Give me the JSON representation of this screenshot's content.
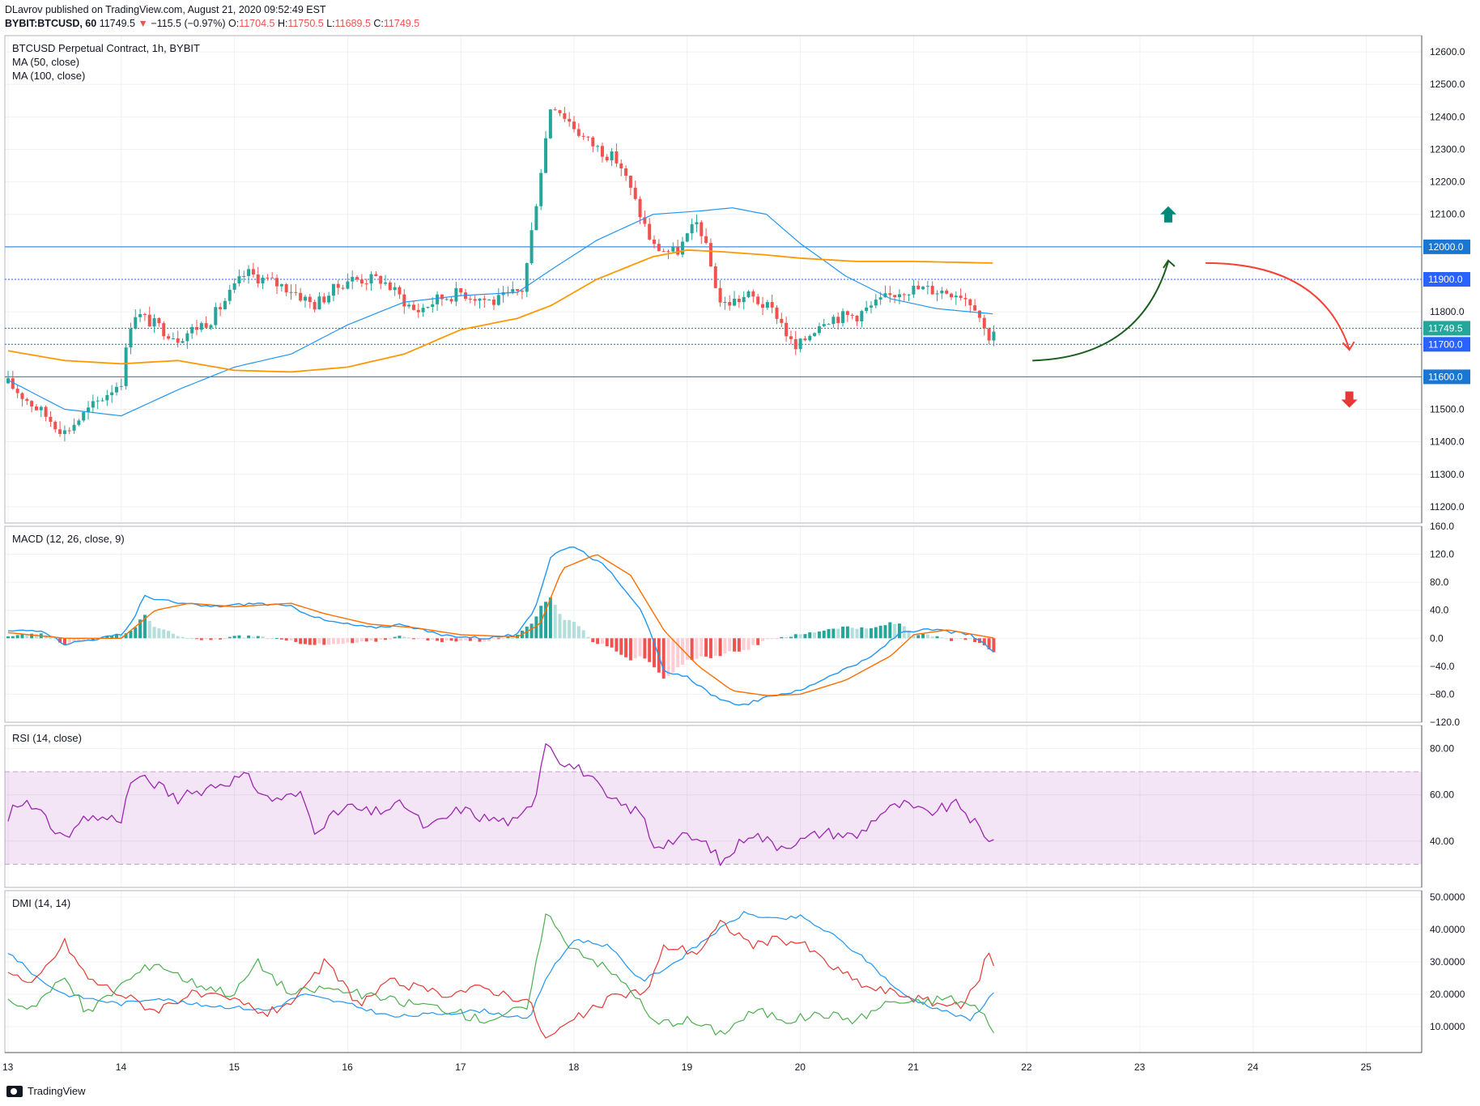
{
  "header": {
    "line1": "DLavrov published on TradingView.com, August 21, 2020 09:52:49 EST",
    "symbol": "BYBIT:BTCUSD, 60",
    "last": "11749.5",
    "change": "−115.5 (−0.97%)",
    "o_label": "O:",
    "o_value": "11704.5",
    "h_label": "H:",
    "h_value": "11750.5",
    "l_label": "L:",
    "l_value": "11689.5",
    "c_label": "C:",
    "c_value": "11749.5"
  },
  "footer": {
    "brand": "TradingView"
  },
  "colors": {
    "up": "#26a69a",
    "down": "#ef5350",
    "ma50": "#2196f3",
    "ma100": "#ff9800",
    "signal": "#ff6d00",
    "rsi": "#9c27b0",
    "dmi_plus": "#2196f3",
    "dmi_minus": "#e53935",
    "adx": "#4caf50",
    "arrow_green": "#1b5e20",
    "arrow_red": "#f44336",
    "level_line": "#2962ff"
  },
  "chart_data": [
    {
      "type": "candlestick",
      "title": "BTCUSD Perpetual Contract, 1h, BYBIT",
      "legend": [
        "MA (50, close)",
        "MA (100, close)"
      ],
      "x_ticks": [
        "13",
        "14",
        "15",
        "16",
        "17",
        "18",
        "19",
        "20",
        "21",
        "22",
        "23",
        "24",
        "25"
      ],
      "ylim": [
        11150,
        12650
      ],
      "y_ticks": [
        "11200.0",
        "11300.0",
        "11400.0",
        "11500.0",
        "11600.0",
        "11700.0",
        "11800.0",
        "11900.0",
        "12000.0",
        "12100.0",
        "12200.0",
        "12300.0",
        "12400.0",
        "12500.0",
        "12600.0"
      ],
      "price_key_points": [
        [
          13.0,
          11580
        ],
        [
          13.5,
          11430
        ],
        [
          14.0,
          11590
        ],
        [
          14.1,
          11800
        ],
        [
          14.5,
          11720
        ],
        [
          14.8,
          11780
        ],
        [
          15.1,
          11920
        ],
        [
          15.5,
          11870
        ],
        [
          15.7,
          11820
        ],
        [
          16.0,
          11900
        ],
        [
          16.3,
          11900
        ],
        [
          16.6,
          11800
        ],
        [
          16.8,
          11840
        ],
        [
          17.0,
          11860
        ],
        [
          17.3,
          11830
        ],
        [
          17.55,
          11870
        ],
        [
          17.7,
          12220
        ],
        [
          17.8,
          12450
        ],
        [
          18.1,
          12330
        ],
        [
          18.4,
          12260
        ],
        [
          18.7,
          12000
        ],
        [
          18.9,
          11980
        ],
        [
          19.1,
          12080
        ],
        [
          19.3,
          11820
        ],
        [
          19.55,
          11850
        ],
        [
          19.8,
          11790
        ],
        [
          19.95,
          11680
        ],
        [
          20.2,
          11780
        ],
        [
          20.5,
          11790
        ],
        [
          20.7,
          11830
        ],
        [
          20.9,
          11870
        ],
        [
          21.1,
          11870
        ],
        [
          21.4,
          11860
        ],
        [
          21.55,
          11820
        ],
        [
          21.65,
          11720
        ],
        [
          21.72,
          11749.5
        ]
      ],
      "ma50_points": [
        [
          13.0,
          11590
        ],
        [
          13.5,
          11500
        ],
        [
          14.0,
          11480
        ],
        [
          14.5,
          11560
        ],
        [
          15.0,
          11630
        ],
        [
          15.5,
          11670
        ],
        [
          16.0,
          11760
        ],
        [
          16.5,
          11830
        ],
        [
          17.0,
          11850
        ],
        [
          17.5,
          11860
        ],
        [
          17.8,
          11930
        ],
        [
          18.2,
          12020
        ],
        [
          18.7,
          12100
        ],
        [
          19.1,
          12110
        ],
        [
          19.4,
          12120
        ],
        [
          19.7,
          12100
        ],
        [
          20.0,
          12010
        ],
        [
          20.4,
          11910
        ],
        [
          20.8,
          11840
        ],
        [
          21.2,
          11810
        ],
        [
          21.5,
          11800
        ],
        [
          21.72,
          11793
        ]
      ],
      "ma100_points": [
        [
          13.0,
          11680
        ],
        [
          13.5,
          11650
        ],
        [
          14.0,
          11640
        ],
        [
          14.5,
          11650
        ],
        [
          15.0,
          11620
        ],
        [
          15.5,
          11615
        ],
        [
          16.0,
          11630
        ],
        [
          16.5,
          11670
        ],
        [
          17.0,
          11745
        ],
        [
          17.5,
          11780
        ],
        [
          17.8,
          11820
        ],
        [
          18.2,
          11900
        ],
        [
          18.7,
          11970
        ],
        [
          19.0,
          11990
        ],
        [
          19.3,
          11985
        ],
        [
          19.7,
          11975
        ],
        [
          20.0,
          11965
        ],
        [
          20.5,
          11955
        ],
        [
          21.0,
          11955
        ],
        [
          21.72,
          11950
        ]
      ],
      "levels": [
        12000.0,
        11900.0,
        11749.5,
        11700.0,
        11600.0
      ],
      "badges": [
        "12000.0",
        "11900.0",
        "11749.5",
        "11700.0",
        "11600.0"
      ],
      "annotations": [
        "up-arrow",
        "down-arrow",
        "green-curve-up",
        "red-curve-down"
      ]
    },
    {
      "type": "line",
      "title": "MACD (12, 26, close, 9)",
      "ylim": [
        -120,
        160
      ],
      "y_ticks": [
        "160.0",
        "120.0",
        "80.0",
        "40.0",
        "0.0",
        "−40.0",
        "−80.0",
        "−120.0"
      ],
      "macd_points": [
        [
          13.0,
          10
        ],
        [
          13.3,
          12
        ],
        [
          13.5,
          -8
        ],
        [
          14.0,
          5
        ],
        [
          14.1,
          25
        ],
        [
          14.2,
          60
        ],
        [
          14.5,
          50
        ],
        [
          14.8,
          45
        ],
        [
          15.2,
          50
        ],
        [
          15.5,
          45
        ],
        [
          15.8,
          25
        ],
        [
          16.2,
          15
        ],
        [
          16.5,
          20
        ],
        [
          16.8,
          5
        ],
        [
          17.2,
          0
        ],
        [
          17.5,
          5
        ],
        [
          17.65,
          40
        ],
        [
          17.8,
          120
        ],
        [
          18.0,
          132
        ],
        [
          18.3,
          100
        ],
        [
          18.6,
          40
        ],
        [
          18.8,
          -50
        ],
        [
          19.0,
          -55
        ],
        [
          19.3,
          -90
        ],
        [
          19.5,
          -95
        ],
        [
          19.8,
          -80
        ],
        [
          20.0,
          -75
        ],
        [
          20.3,
          -50
        ],
        [
          20.6,
          -30
        ],
        [
          20.9,
          10
        ],
        [
          21.2,
          12
        ],
        [
          21.5,
          5
        ],
        [
          21.72,
          -20
        ]
      ],
      "signal_points": [
        [
          13.0,
          8
        ],
        [
          13.5,
          0
        ],
        [
          14.0,
          0
        ],
        [
          14.3,
          40
        ],
        [
          14.6,
          50
        ],
        [
          15.0,
          45
        ],
        [
          15.5,
          50
        ],
        [
          15.8,
          35
        ],
        [
          16.2,
          20
        ],
        [
          16.6,
          15
        ],
        [
          17.0,
          5
        ],
        [
          17.5,
          2
        ],
        [
          17.7,
          20
        ],
        [
          17.9,
          100
        ],
        [
          18.2,
          120
        ],
        [
          18.5,
          90
        ],
        [
          18.8,
          10
        ],
        [
          19.1,
          -40
        ],
        [
          19.4,
          -75
        ],
        [
          19.7,
          -82
        ],
        [
          20.0,
          -80
        ],
        [
          20.4,
          -60
        ],
        [
          20.8,
          -25
        ],
        [
          21.0,
          5
        ],
        [
          21.3,
          12
        ],
        [
          21.72,
          0
        ]
      ],
      "hist_sign_changes": [
        [
          13.0,
          1
        ],
        [
          13.45,
          -1
        ],
        [
          14.0,
          1
        ],
        [
          14.5,
          -1
        ],
        [
          15.1,
          1
        ],
        [
          15.6,
          -1
        ],
        [
          16.2,
          1
        ],
        [
          17.5,
          1
        ],
        [
          18.2,
          -1
        ],
        [
          19.6,
          1
        ],
        [
          21.5,
          -1
        ]
      ]
    },
    {
      "type": "line",
      "title": "RSI (14, close)",
      "ylim": [
        20,
        90
      ],
      "y_ticks": [
        "80.00",
        "60.00",
        "40.00"
      ],
      "band": [
        30,
        70
      ],
      "rsi_points": [
        [
          13.0,
          50
        ],
        [
          13.1,
          58
        ],
        [
          13.3,
          52
        ],
        [
          13.5,
          40
        ],
        [
          13.7,
          50
        ],
        [
          14.0,
          50
        ],
        [
          14.1,
          68
        ],
        [
          14.3,
          65
        ],
        [
          14.5,
          58
        ],
        [
          14.8,
          64
        ],
        [
          15.1,
          68
        ],
        [
          15.3,
          58
        ],
        [
          15.6,
          60
        ],
        [
          15.7,
          45
        ],
        [
          16.0,
          55
        ],
        [
          16.2,
          52
        ],
        [
          16.5,
          56
        ],
        [
          16.7,
          45
        ],
        [
          17.0,
          54
        ],
        [
          17.2,
          50
        ],
        [
          17.5,
          48
        ],
        [
          17.65,
          58
        ],
        [
          17.75,
          84
        ],
        [
          17.9,
          74
        ],
        [
          18.1,
          70
        ],
        [
          18.3,
          58
        ],
        [
          18.6,
          52
        ],
        [
          18.7,
          38
        ],
        [
          19.0,
          42
        ],
        [
          19.2,
          38
        ],
        [
          19.3,
          30
        ],
        [
          19.55,
          44
        ],
        [
          19.8,
          38
        ],
        [
          20.0,
          40
        ],
        [
          20.2,
          44
        ],
        [
          20.5,
          42
        ],
        [
          20.7,
          52
        ],
        [
          20.9,
          56
        ],
        [
          21.1,
          52
        ],
        [
          21.4,
          56
        ],
        [
          21.6,
          44
        ],
        [
          21.65,
          38
        ],
        [
          21.72,
          43
        ]
      ]
    },
    {
      "type": "line",
      "title": "DMI (14, 14)",
      "ylim": [
        2,
        52
      ],
      "y_ticks": [
        "50.0000",
        "40.0000",
        "30.0000",
        "20.0000",
        "10.0000"
      ],
      "plus_points": [
        [
          13.0,
          33
        ],
        [
          13.3,
          24
        ],
        [
          13.5,
          20
        ],
        [
          14.0,
          17
        ],
        [
          14.3,
          19
        ],
        [
          14.6,
          17
        ],
        [
          15.0,
          16
        ],
        [
          15.3,
          15
        ],
        [
          15.6,
          20
        ],
        [
          16.0,
          17
        ],
        [
          16.4,
          13
        ],
        [
          16.8,
          14
        ],
        [
          17.2,
          15
        ],
        [
          17.6,
          12
        ],
        [
          17.75,
          25
        ],
        [
          18.0,
          37
        ],
        [
          18.3,
          35
        ],
        [
          18.6,
          24
        ],
        [
          18.9,
          30
        ],
        [
          19.2,
          38
        ],
        [
          19.5,
          45
        ],
        [
          19.8,
          43
        ],
        [
          20.0,
          44
        ],
        [
          20.3,
          38
        ],
        [
          20.6,
          30
        ],
        [
          20.9,
          20
        ],
        [
          21.1,
          17
        ],
        [
          21.5,
          12
        ],
        [
          21.72,
          21
        ]
      ],
      "minus_points": [
        [
          13.0,
          28
        ],
        [
          13.2,
          22
        ],
        [
          13.5,
          36
        ],
        [
          13.7,
          25
        ],
        [
          14.0,
          20
        ],
        [
          14.3,
          15
        ],
        [
          14.6,
          20
        ],
        [
          15.0,
          18
        ],
        [
          15.3,
          14
        ],
        [
          15.6,
          20
        ],
        [
          15.8,
          30
        ],
        [
          16.1,
          17
        ],
        [
          16.4,
          24
        ],
        [
          16.8,
          20
        ],
        [
          17.2,
          22
        ],
        [
          17.6,
          18
        ],
        [
          17.75,
          6
        ],
        [
          18.0,
          12
        ],
        [
          18.4,
          20
        ],
        [
          18.65,
          21
        ],
        [
          18.8,
          35
        ],
        [
          19.1,
          33
        ],
        [
          19.3,
          42
        ],
        [
          19.6,
          35
        ],
        [
          19.8,
          37
        ],
        [
          20.0,
          36
        ],
        [
          20.3,
          28
        ],
        [
          20.6,
          22
        ],
        [
          20.9,
          20
        ],
        [
          21.1,
          18
        ],
        [
          21.4,
          16
        ],
        [
          21.55,
          22
        ],
        [
          21.65,
          33
        ],
        [
          21.72,
          29
        ]
      ],
      "adx_points": [
        [
          13.0,
          18
        ],
        [
          13.2,
          16
        ],
        [
          13.5,
          25
        ],
        [
          13.7,
          14
        ],
        [
          14.0,
          23
        ],
        [
          14.3,
          30
        ],
        [
          14.6,
          24
        ],
        [
          15.0,
          20
        ],
        [
          15.2,
          30
        ],
        [
          15.5,
          20
        ],
        [
          15.8,
          22
        ],
        [
          16.1,
          20
        ],
        [
          16.4,
          18
        ],
        [
          16.8,
          16
        ],
        [
          17.2,
          12
        ],
        [
          17.6,
          16
        ],
        [
          17.75,
          46
        ],
        [
          17.9,
          37
        ],
        [
          18.2,
          30
        ],
        [
          18.5,
          22
        ],
        [
          18.7,
          11
        ],
        [
          19.0,
          12
        ],
        [
          19.3,
          8
        ],
        [
          19.6,
          15
        ],
        [
          19.9,
          12
        ],
        [
          20.2,
          14
        ],
        [
          20.5,
          12
        ],
        [
          20.8,
          18
        ],
        [
          21.0,
          17
        ],
        [
          21.3,
          19
        ],
        [
          21.55,
          16
        ],
        [
          21.72,
          9
        ]
      ]
    }
  ]
}
